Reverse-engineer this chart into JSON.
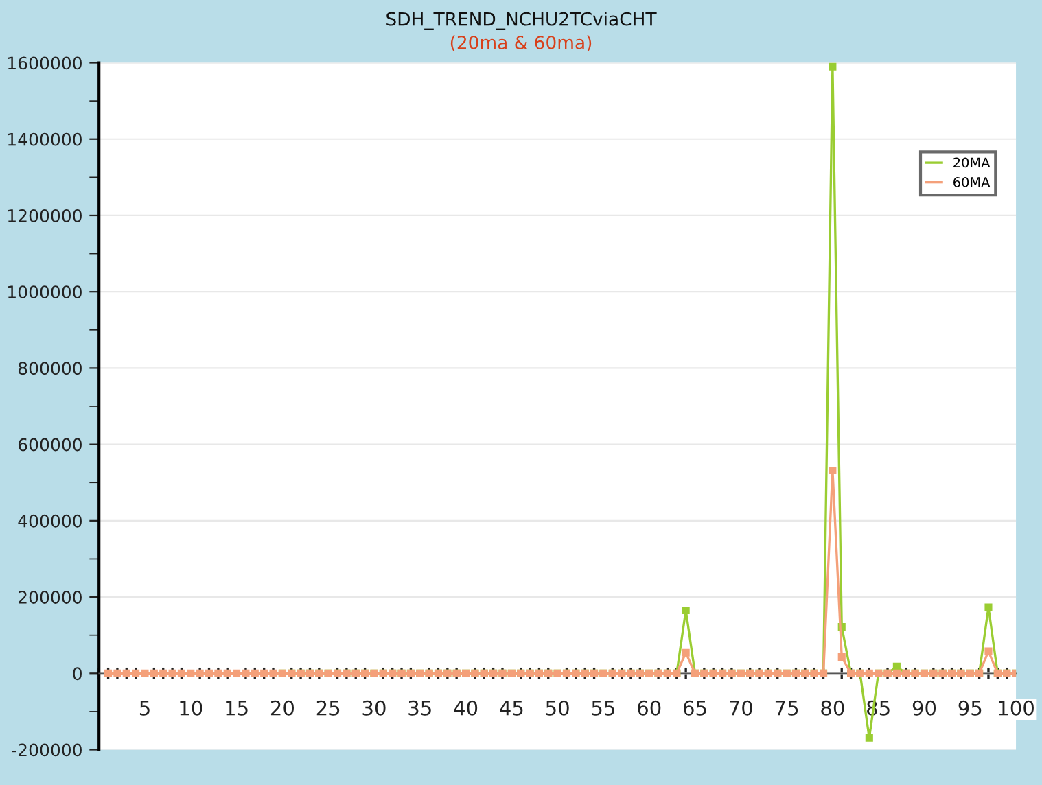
{
  "chart_data": {
    "type": "line",
    "title": "SDH_TREND_NCHU2TCviaCHT",
    "subtitle": "(20ma & 60ma)",
    "x": [
      1,
      2,
      3,
      4,
      5,
      6,
      7,
      8,
      9,
      10,
      11,
      12,
      13,
      14,
      15,
      16,
      17,
      18,
      19,
      20,
      21,
      22,
      23,
      24,
      25,
      26,
      27,
      28,
      29,
      30,
      31,
      32,
      33,
      34,
      35,
      36,
      37,
      38,
      39,
      40,
      41,
      42,
      43,
      44,
      45,
      46,
      47,
      48,
      49,
      50,
      51,
      52,
      53,
      54,
      55,
      56,
      57,
      58,
      59,
      60,
      61,
      62,
      63,
      64,
      65,
      66,
      67,
      68,
      69,
      70,
      71,
      72,
      73,
      74,
      75,
      76,
      77,
      78,
      79,
      80,
      81,
      82,
      83,
      84,
      85,
      86,
      87,
      88,
      89,
      90,
      91,
      92,
      93,
      94,
      95,
      96,
      97,
      98,
      99,
      100
    ],
    "series": [
      {
        "name": "20MA",
        "color": "#9acd32",
        "values": [
          null,
          null,
          null,
          null,
          null,
          null,
          null,
          null,
          null,
          null,
          null,
          null,
          null,
          null,
          null,
          null,
          null,
          null,
          null,
          0,
          0,
          0,
          0,
          0,
          0,
          0,
          0,
          0,
          0,
          0,
          0,
          0,
          0,
          0,
          0,
          0,
          0,
          0,
          0,
          0,
          0,
          0,
          0,
          0,
          0,
          0,
          0,
          0,
          0,
          0,
          0,
          0,
          0,
          0,
          0,
          0,
          0,
          0,
          0,
          0,
          0,
          0,
          0,
          165000,
          0,
          0,
          0,
          0,
          0,
          0,
          0,
          0,
          0,
          0,
          0,
          0,
          0,
          0,
          0,
          1590000,
          122000,
          0,
          0,
          -169000,
          0,
          0,
          18000,
          0,
          0,
          0,
          0,
          0,
          0,
          0,
          0,
          0,
          173000,
          0,
          0,
          0
        ]
      },
      {
        "name": "60MA",
        "color": "#f4a07a",
        "values": [
          0,
          0,
          0,
          0,
          0,
          0,
          0,
          0,
          0,
          0,
          0,
          0,
          0,
          0,
          0,
          0,
          0,
          0,
          0,
          0,
          0,
          0,
          0,
          0,
          0,
          0,
          0,
          0,
          0,
          0,
          0,
          0,
          0,
          0,
          0,
          0,
          0,
          0,
          0,
          0,
          0,
          0,
          0,
          0,
          0,
          0,
          0,
          0,
          0,
          0,
          0,
          0,
          0,
          0,
          0,
          0,
          0,
          0,
          0,
          0,
          0,
          0,
          0,
          54000,
          0,
          0,
          0,
          0,
          0,
          0,
          0,
          0,
          0,
          0,
          0,
          0,
          0,
          0,
          0,
          532000,
          43000,
          0,
          0,
          0,
          0,
          0,
          0,
          0,
          0,
          0,
          0,
          0,
          0,
          0,
          0,
          0,
          58000,
          0,
          0,
          0
        ]
      }
    ],
    "xlim": [
      0,
      100
    ],
    "xticks": [
      5,
      10,
      15,
      20,
      25,
      30,
      35,
      40,
      45,
      50,
      55,
      60,
      65,
      70,
      75,
      80,
      85,
      90,
      95,
      100
    ],
    "ylim": [
      -200000,
      1600000
    ],
    "yticks": [
      -200000,
      0,
      200000,
      400000,
      600000,
      800000,
      1000000,
      1200000,
      1400000,
      1600000
    ],
    "grid": "y",
    "legend": "top right",
    "marker": "square",
    "line_style": "solid"
  }
}
